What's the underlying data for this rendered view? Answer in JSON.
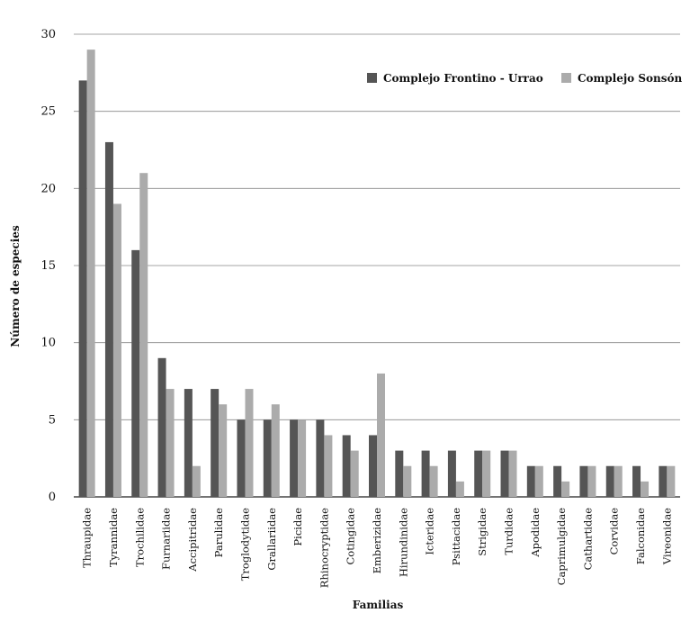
{
  "chart_data": {
    "type": "bar",
    "title": "",
    "xlabel": "Familias",
    "ylabel": "Número de especies",
    "ylim": [
      0,
      30
    ],
    "yticks": [
      0,
      5,
      10,
      15,
      20,
      25,
      30
    ],
    "grid": true,
    "legend_position": "top-right",
    "categories": [
      "Thraupidae",
      "Tyrannidae",
      "Trochilidae",
      "Furnariidae",
      "Accipitridae",
      "Parulidae",
      "Troglodytidae",
      "Grallariidae",
      "Picidae",
      "Rhinocryptidae",
      "Cotingidae",
      "Emberizidae",
      "Hirundinidae",
      "Icteridae",
      "Psittacidae",
      "Strigidae",
      "Turdidae",
      "Apodidae",
      "Caprimulgidae",
      "Cathartidae",
      "Corvidae",
      "Falconidae",
      "Vireonidae"
    ],
    "series": [
      {
        "name": "Complejo Frontino - Urrao",
        "color": "#555555",
        "values": [
          27,
          23,
          16,
          9,
          7,
          7,
          5,
          5,
          5,
          5,
          4,
          4,
          3,
          3,
          3,
          3,
          3,
          2,
          2,
          2,
          2,
          2,
          2
        ]
      },
      {
        "name": "Complejo Sonsón",
        "color": "#ababab",
        "values": [
          29,
          19,
          21,
          7,
          2,
          6,
          7,
          6,
          5,
          4,
          3,
          8,
          2,
          2,
          1,
          3,
          3,
          2,
          1,
          2,
          2,
          1,
          2
        ]
      }
    ]
  }
}
